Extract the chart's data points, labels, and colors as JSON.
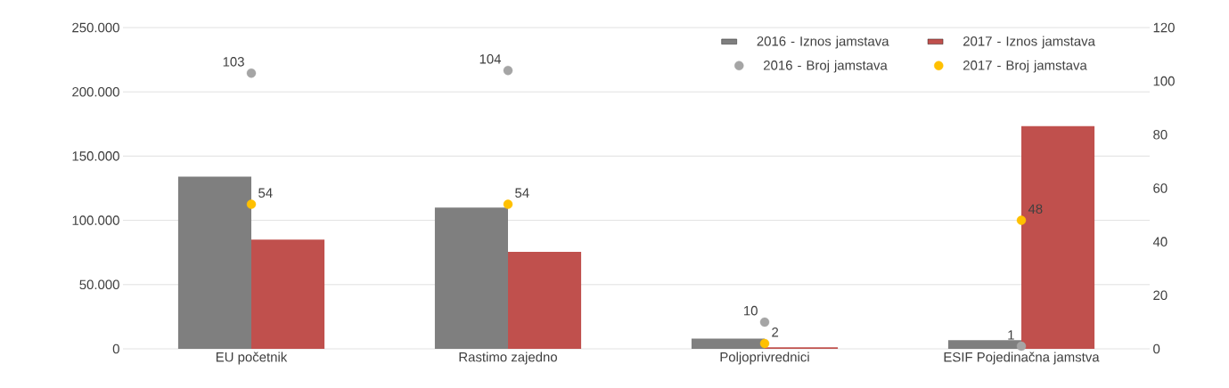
{
  "chart_data": {
    "type": "bar",
    "categories": [
      "EU početnik",
      "Rastimo zajedno",
      "Poljoprivrednici",
      "ESIF Pojedinačna jamstva"
    ],
    "series": [
      {
        "name": "2016 - Iznos jamstava",
        "color": "#7f7f7f",
        "values": [
          134000,
          110000,
          8000,
          6800
        ]
      },
      {
        "name": "2017 - Iznos jamstava",
        "color": "#c0504d",
        "values": [
          85000,
          75500,
          1200,
          173300
        ]
      },
      {
        "name": "2016 - Broj jamstava",
        "type": "scatter",
        "axis": "y2",
        "color": "#a5a5a5",
        "values": [
          103,
          104,
          10,
          1
        ],
        "value_labels": [
          "103",
          "104",
          "10",
          "1"
        ]
      },
      {
        "name": "2017 - Broj jamstava",
        "type": "scatter",
        "axis": "y2",
        "color": "#ffc000",
        "values": [
          54,
          54,
          2,
          48
        ],
        "value_labels": [
          "54",
          "54",
          "2",
          "48"
        ]
      }
    ],
    "ylim": [
      0,
      250000
    ],
    "yticks": [
      0,
      {
        "value": 50000,
        "label": "50.000"
      },
      {
        "value": 100000,
        "label": "100.000"
      },
      {
        "value": 150000,
        "label": "150.000"
      },
      {
        "value": 200000,
        "label": "200.000"
      },
      {
        "value": 250000,
        "label": "250.000"
      }
    ],
    "y2lim": [
      0,
      120
    ],
    "y2ticks": [
      0,
      20,
      40,
      60,
      80,
      100,
      120
    ],
    "grid": "y",
    "legend": "top right"
  }
}
